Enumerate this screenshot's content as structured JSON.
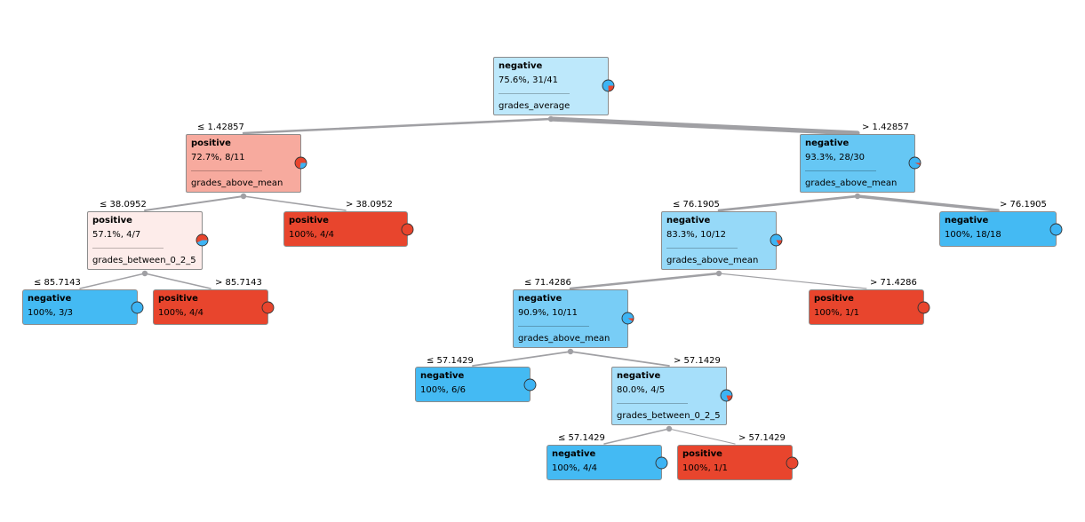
{
  "colors": {
    "negative": "#4cb8f0",
    "positive": "#e8452d",
    "edge": "#a0a0a4",
    "pie_negative": "#3db4f4",
    "pie_positive": "#e8452d"
  },
  "nodes": [
    {
      "id": "n0",
      "class": "negative",
      "stats": "75.6%, 31/41",
      "feature": "grades_average",
      "fill": "#bde8fb",
      "neg_fraction": 0.756,
      "leaf": false
    },
    {
      "id": "n1",
      "class": "positive",
      "stats": "72.7%, 8/11",
      "feature": "grades_above_mean",
      "fill": "#f7aa9e",
      "neg_fraction": 0.273,
      "leaf": false
    },
    {
      "id": "n2",
      "class": "negative",
      "stats": "93.3%, 28/30",
      "feature": "grades_above_mean",
      "fill": "#66c7f4",
      "neg_fraction": 0.933,
      "leaf": false
    },
    {
      "id": "n3",
      "class": "positive",
      "stats": "57.1%, 4/7",
      "feature": "grades_between_0_2_5",
      "fill": "#fdecea",
      "neg_fraction": 0.429,
      "leaf": false
    },
    {
      "id": "n4",
      "class": "positive",
      "stats": "100%, 4/4",
      "feature": "",
      "fill": "#e8452d",
      "neg_fraction": 0.0,
      "leaf": true
    },
    {
      "id": "n5",
      "class": "negative",
      "stats": "83.3%, 10/12",
      "feature": "grades_above_mean",
      "fill": "#96d9f8",
      "neg_fraction": 0.833,
      "leaf": false
    },
    {
      "id": "n6",
      "class": "negative",
      "stats": "100%, 18/18",
      "feature": "",
      "fill": "#44baf3",
      "neg_fraction": 1.0,
      "leaf": true
    },
    {
      "id": "n7",
      "class": "negative",
      "stats": "100%, 3/3",
      "feature": "",
      "fill": "#44baf3",
      "neg_fraction": 1.0,
      "leaf": true
    },
    {
      "id": "n8",
      "class": "positive",
      "stats": "100%, 4/4",
      "feature": "",
      "fill": "#e8452d",
      "neg_fraction": 0.0,
      "leaf": true
    },
    {
      "id": "n9",
      "class": "negative",
      "stats": "90.9%, 10/11",
      "feature": "grades_above_mean",
      "fill": "#78cdf6",
      "neg_fraction": 0.909,
      "leaf": false
    },
    {
      "id": "n10",
      "class": "positive",
      "stats": "100%, 1/1",
      "feature": "",
      "fill": "#e8452d",
      "neg_fraction": 0.0,
      "leaf": true
    },
    {
      "id": "n11",
      "class": "negative",
      "stats": "100%, 6/6",
      "feature": "",
      "fill": "#44baf3",
      "neg_fraction": 1.0,
      "leaf": true
    },
    {
      "id": "n12",
      "class": "negative",
      "stats": "80.0%, 4/5",
      "feature": "grades_between_0_2_5",
      "fill": "#a6dffa",
      "neg_fraction": 0.8,
      "leaf": false
    },
    {
      "id": "n13",
      "class": "negative",
      "stats": "100%, 4/4",
      "feature": "",
      "fill": "#44baf3",
      "neg_fraction": 1.0,
      "leaf": true
    },
    {
      "id": "n14",
      "class": "positive",
      "stats": "100%, 1/1",
      "feature": "",
      "fill": "#e8452d",
      "neg_fraction": 0.0,
      "leaf": true
    }
  ],
  "edges": [
    {
      "from": "n0",
      "to": "n1",
      "label": "≤ 1.42857",
      "weight": 11
    },
    {
      "from": "n0",
      "to": "n2",
      "label": "> 1.42857",
      "weight": 30
    },
    {
      "from": "n1",
      "to": "n3",
      "label": "≤ 38.0952",
      "weight": 7
    },
    {
      "from": "n1",
      "to": "n4",
      "label": "> 38.0952",
      "weight": 4
    },
    {
      "from": "n2",
      "to": "n5",
      "label": "≤ 76.1905",
      "weight": 12
    },
    {
      "from": "n2",
      "to": "n6",
      "label": "> 76.1905",
      "weight": 18
    },
    {
      "from": "n3",
      "to": "n7",
      "label": "≤ 85.7143",
      "weight": 3
    },
    {
      "from": "n3",
      "to": "n8",
      "label": "> 85.7143",
      "weight": 4
    },
    {
      "from": "n5",
      "to": "n9",
      "label": "≤ 71.4286",
      "weight": 11
    },
    {
      "from": "n5",
      "to": "n10",
      "label": "> 71.4286",
      "weight": 1
    },
    {
      "from": "n9",
      "to": "n11",
      "label": "≤ 57.1429",
      "weight": 6
    },
    {
      "from": "n9",
      "to": "n12",
      "label": "> 57.1429",
      "weight": 5
    },
    {
      "from": "n12",
      "to": "n13",
      "label": "≤ 57.1429",
      "weight": 4
    },
    {
      "from": "n12",
      "to": "n14",
      "label": "> 57.1429",
      "weight": 1
    }
  ]
}
